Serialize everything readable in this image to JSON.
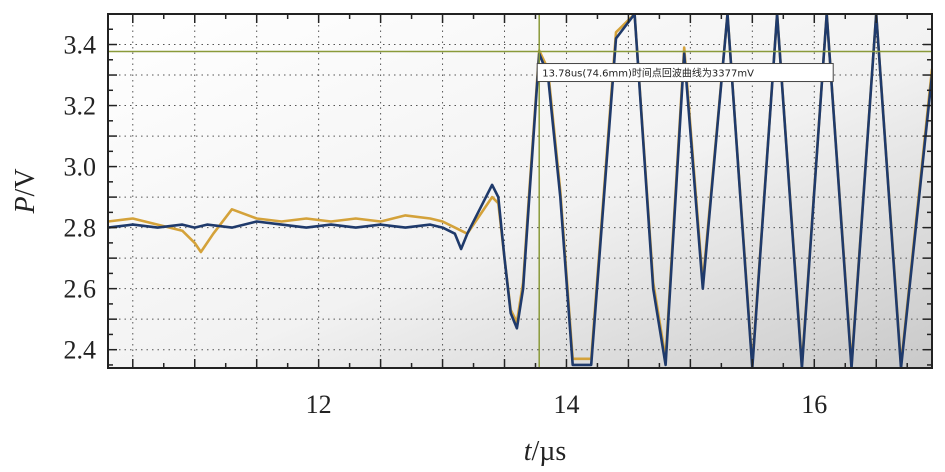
{
  "chart_data": {
    "type": "line",
    "xlabel_var": "t",
    "xlabel_unit": "/µs",
    "ylabel_var": "P",
    "ylabel_unit": "/V",
    "xlim": [
      10.3,
      16.95
    ],
    "ylim": [
      2.34,
      3.5
    ],
    "xticks": [
      12,
      14,
      16
    ],
    "yticks": [
      2.4,
      2.6,
      2.8,
      3.0,
      3.2,
      3.4
    ],
    "ytick_labels": [
      "2.4",
      "2.6",
      "2.8",
      "3.0",
      "3.2",
      "3.4"
    ],
    "grid": "dotted",
    "colors": {
      "series_navy": "#1f3a6b",
      "series_gold": "#d4a23a",
      "cursor": "#8a9a3a",
      "annotation_border": "#444444"
    },
    "cursor_lines": {
      "vertical_x": 13.78,
      "horizontal_y": 3.377
    },
    "annotation": {
      "text": "13.78us(74.6mm)时间点回波曲线为3377mV",
      "x": 13.78,
      "y": 3.377
    },
    "series": [
      {
        "x": [
          10.3,
          10.5,
          10.7,
          10.9,
          11.0,
          11.1,
          11.3,
          11.5,
          11.7,
          11.9,
          12.1,
          12.3,
          12.5,
          12.7,
          12.9,
          13.0,
          13.1,
          13.15,
          13.2,
          13.3,
          13.4,
          13.45,
          13.5,
          13.55,
          13.6,
          13.65,
          13.7,
          13.78,
          13.85,
          13.95,
          14.05,
          14.2,
          14.4,
          14.55,
          14.7,
          14.8,
          14.95,
          15.1,
          15.3,
          15.5,
          15.7,
          15.9,
          16.1,
          16.3,
          16.5,
          16.7,
          16.95
        ],
        "y": [
          2.8,
          2.81,
          2.8,
          2.81,
          2.8,
          2.81,
          2.8,
          2.82,
          2.81,
          2.8,
          2.81,
          2.8,
          2.81,
          2.8,
          2.81,
          2.8,
          2.78,
          2.73,
          2.78,
          2.86,
          2.94,
          2.9,
          2.7,
          2.52,
          2.47,
          2.6,
          2.9,
          3.37,
          3.3,
          2.9,
          2.35,
          2.35,
          3.42,
          3.5,
          2.6,
          2.35,
          3.37,
          2.6,
          3.5,
          2.34,
          3.5,
          2.34,
          3.5,
          2.34,
          3.5,
          2.34,
          3.3
        ]
      },
      {
        "x": [
          10.3,
          10.5,
          10.7,
          10.9,
          11.0,
          11.05,
          11.15,
          11.3,
          11.5,
          11.7,
          11.9,
          12.1,
          12.3,
          12.5,
          12.7,
          12.9,
          13.0,
          13.1,
          13.2,
          13.3,
          13.4,
          13.45,
          13.5,
          13.55,
          13.6,
          13.65,
          13.7,
          13.78,
          13.85,
          13.95,
          14.05,
          14.2,
          14.4,
          14.55,
          14.7,
          14.8,
          14.95,
          15.1,
          15.3,
          15.5,
          15.7,
          15.9,
          16.1,
          16.3,
          16.5,
          16.7,
          16.95
        ],
        "y": [
          2.82,
          2.83,
          2.81,
          2.79,
          2.75,
          2.72,
          2.78,
          2.86,
          2.83,
          2.82,
          2.83,
          2.82,
          2.83,
          2.82,
          2.84,
          2.83,
          2.82,
          2.8,
          2.78,
          2.84,
          2.9,
          2.88,
          2.7,
          2.53,
          2.49,
          2.62,
          2.92,
          3.38,
          3.32,
          2.92,
          2.37,
          2.37,
          3.44,
          3.5,
          2.62,
          2.37,
          3.39,
          2.62,
          3.5,
          2.35,
          3.5,
          2.35,
          3.5,
          2.35,
          3.5,
          2.35,
          3.32
        ]
      }
    ]
  }
}
